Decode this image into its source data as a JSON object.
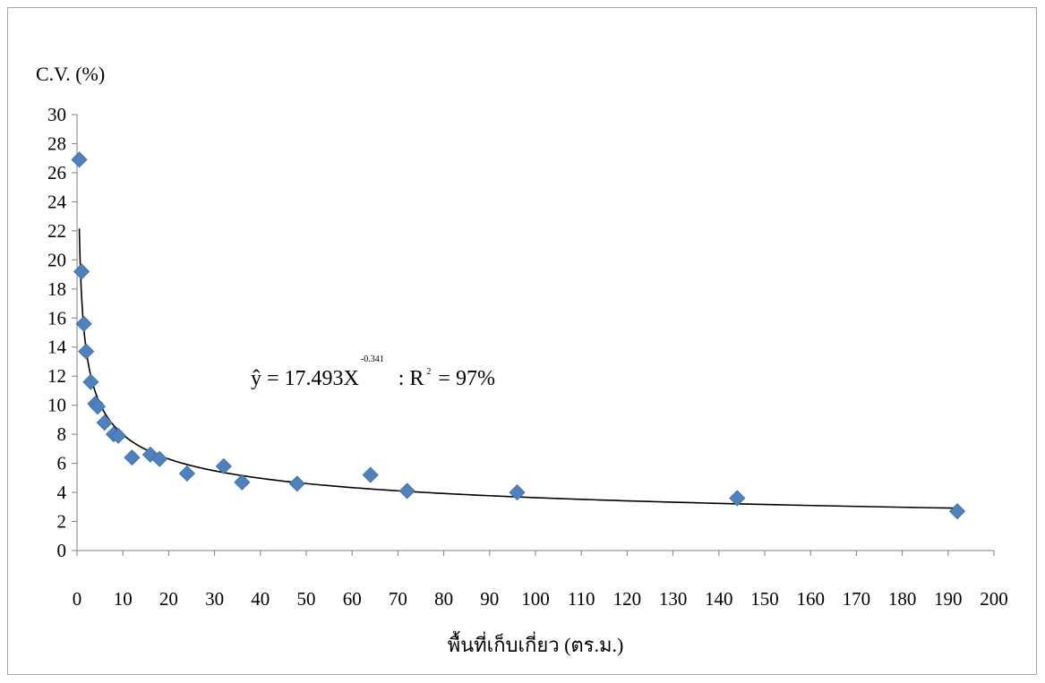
{
  "chart_data": {
    "type": "scatter",
    "ylabel": "C.V. (%)",
    "xlabel": "พื้นที่เก็บเกี่ยว (ตร.ม.)",
    "xlim": [
      0,
      200
    ],
    "ylim": [
      0,
      30
    ],
    "x_ticks": [
      0,
      10,
      20,
      30,
      40,
      50,
      60,
      70,
      80,
      90,
      100,
      110,
      120,
      130,
      140,
      150,
      160,
      170,
      180,
      190,
      200
    ],
    "y_ticks": [
      0,
      2,
      4,
      6,
      8,
      10,
      12,
      14,
      16,
      18,
      20,
      22,
      24,
      26,
      28,
      30
    ],
    "grid": false,
    "legend": "none",
    "marker_color": "#4f81bd",
    "trendline_color": "#000000",
    "series": [
      {
        "points": [
          {
            "x": 0.5,
            "y": 26.9
          },
          {
            "x": 1,
            "y": 19.2
          },
          {
            "x": 1.5,
            "y": 15.6
          },
          {
            "x": 2,
            "y": 13.7
          },
          {
            "x": 3,
            "y": 11.6
          },
          {
            "x": 4,
            "y": 10.1
          },
          {
            "x": 4.5,
            "y": 9.9
          },
          {
            "x": 6,
            "y": 8.8
          },
          {
            "x": 8,
            "y": 8.0
          },
          {
            "x": 9,
            "y": 7.9
          },
          {
            "x": 12,
            "y": 6.4
          },
          {
            "x": 16,
            "y": 6.6
          },
          {
            "x": 18,
            "y": 6.3
          },
          {
            "x": 24,
            "y": 5.3
          },
          {
            "x": 32,
            "y": 5.8
          },
          {
            "x": 36,
            "y": 4.7
          },
          {
            "x": 48,
            "y": 4.6
          },
          {
            "x": 64,
            "y": 5.2
          },
          {
            "x": 72,
            "y": 4.1
          },
          {
            "x": 96,
            "y": 4.0
          },
          {
            "x": 144,
            "y": 3.6
          },
          {
            "x": 192,
            "y": 2.7
          }
        ]
      }
    ],
    "trendline": {
      "type": "power",
      "coefficient": 17.493,
      "exponent": -0.341,
      "x_range": [
        0.5,
        192
      ]
    },
    "annotation": {
      "lhs": "ŷ = 17.493X",
      "exponent_text": "-0.341",
      "r2_prefix": ": R",
      "r2_exponent": "2",
      "r2_suffix": " = 97%"
    }
  }
}
